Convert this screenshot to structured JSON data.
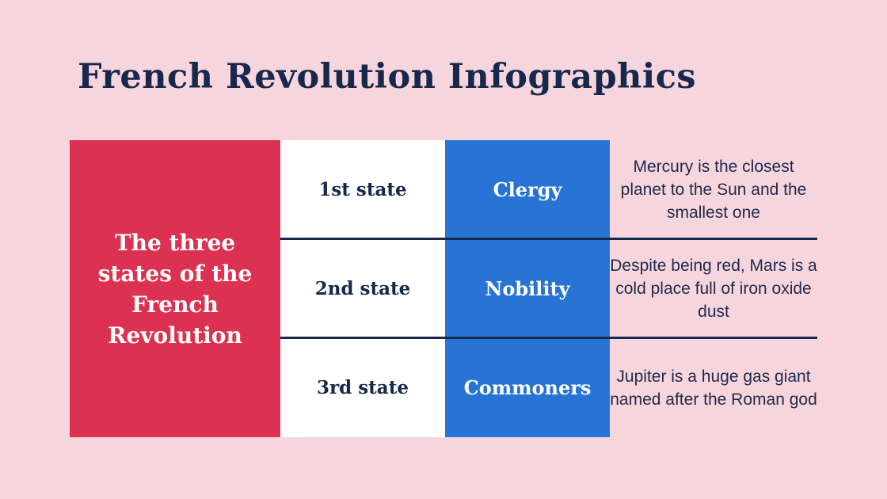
{
  "title": "French Revolution Infographics",
  "main_label": "The three states of the French Revolution",
  "rows": [
    {
      "state": "1st state",
      "group": "Clergy",
      "description": "Mercury is the closest planet to the Sun and the smallest one"
    },
    {
      "state": "2nd state",
      "group": "Nobility",
      "description": "Despite being red, Mars is a cold place full of iron oxide dust"
    },
    {
      "state": "3rd state",
      "group": "Commoners",
      "description": "Jupiter is a huge gas giant named after the Roman god"
    }
  ],
  "colors": {
    "background": "#f7d5dd",
    "title": "#16294d",
    "red": "#dc3150",
    "blue": "#2874d4",
    "white": "#ffffff"
  }
}
